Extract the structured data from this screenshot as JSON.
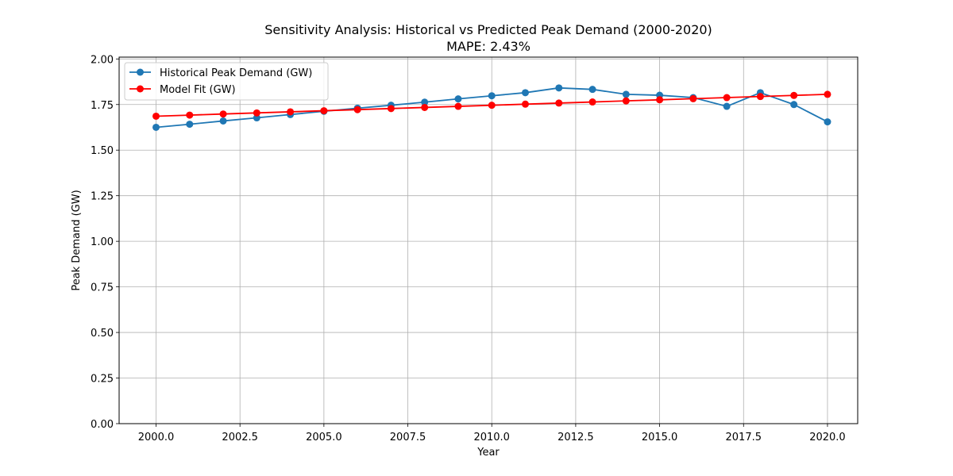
{
  "chart_data": {
    "type": "line",
    "title": "Sensitivity Analysis: Historical vs Predicted Peak Demand (2000-2020)",
    "subtitle": "MAPE: 2.43%",
    "xlabel": "Year",
    "ylabel": "Peak Demand (GW)",
    "xlim": [
      1998.9,
      2020.9
    ],
    "ylim": [
      0.0,
      2.01
    ],
    "x_ticks": [
      2000.0,
      2002.5,
      2005.0,
      2007.5,
      2010.0,
      2012.5,
      2015.0,
      2017.5,
      2020.0
    ],
    "x_tick_labels": [
      "2000.0",
      "2002.5",
      "2005.0",
      "2007.5",
      "2010.0",
      "2012.5",
      "2015.0",
      "2017.5",
      "2020.0"
    ],
    "y_ticks": [
      0.0,
      0.25,
      0.5,
      0.75,
      1.0,
      1.25,
      1.5,
      1.75,
      2.0
    ],
    "y_tick_labels": [
      "0.00",
      "0.25",
      "0.50",
      "0.75",
      "1.00",
      "1.25",
      "1.50",
      "1.75",
      "2.00"
    ],
    "grid": true,
    "legend_position": "top-left",
    "x": [
      2000,
      2001,
      2002,
      2003,
      2004,
      2005,
      2006,
      2007,
      2008,
      2009,
      2010,
      2011,
      2012,
      2013,
      2014,
      2015,
      2016,
      2017,
      2018,
      2019,
      2020
    ],
    "series": [
      {
        "name": "Historical Peak Demand (GW)",
        "color": "#1f77b4",
        "values": [
          1.625,
          1.642,
          1.66,
          1.677,
          1.695,
          1.713,
          1.73,
          1.746,
          1.763,
          1.781,
          1.798,
          1.815,
          1.841,
          1.833,
          1.806,
          1.801,
          1.788,
          1.74,
          1.815,
          1.75,
          1.655
        ]
      },
      {
        "name": "Model Fit (GW)",
        "color": "#ff0000",
        "values": [
          1.686,
          1.692,
          1.698,
          1.704,
          1.71,
          1.716,
          1.722,
          1.728,
          1.734,
          1.74,
          1.746,
          1.752,
          1.758,
          1.764,
          1.77,
          1.776,
          1.782,
          1.788,
          1.794,
          1.8,
          1.806
        ]
      }
    ]
  }
}
